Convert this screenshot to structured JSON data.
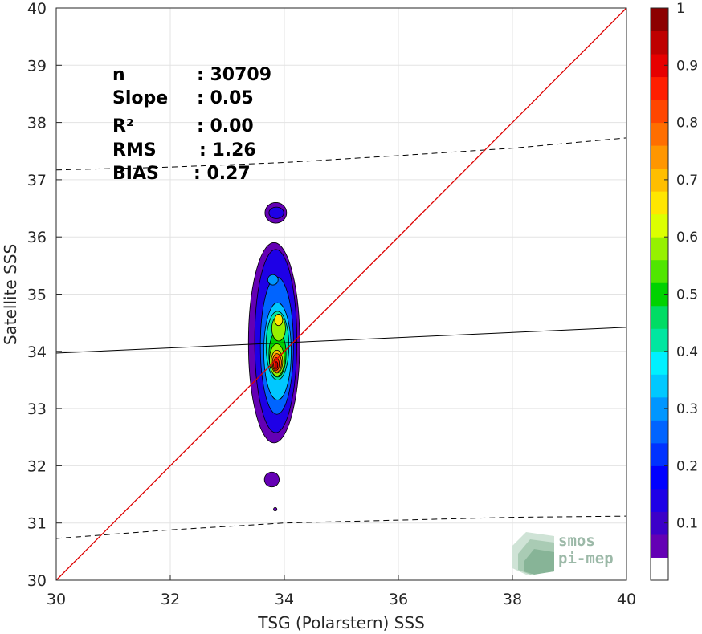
{
  "chart_data": {
    "type": "heatmap",
    "title": "",
    "xlabel": "TSG (Polarstern) SSS",
    "ylabel": "Satellite SSS",
    "xlim": [
      30,
      40
    ],
    "ylim": [
      30,
      40
    ],
    "xticks": [
      "30",
      "32",
      "34",
      "36",
      "38",
      "40"
    ],
    "yticks": [
      "30",
      "31",
      "32",
      "33",
      "34",
      "35",
      "36",
      "37",
      "38",
      "39",
      "40"
    ],
    "grid": true,
    "colorbar": {
      "range": [
        0,
        1
      ],
      "ticks": [
        "0.1",
        "0.2",
        "0.3",
        "0.4",
        "0.5",
        "0.6",
        "0.7",
        "0.8",
        "0.9",
        "1"
      ],
      "colors": [
        "#ffffff",
        "#6400b4",
        "#3c00c8",
        "#1e00e6",
        "#0000ff",
        "#0032ff",
        "#0064ff",
        "#0096ff",
        "#00c8ff",
        "#00f0ff",
        "#00e6a0",
        "#00dc64",
        "#00d200",
        "#50e600",
        "#96f000",
        "#dcff00",
        "#ffe600",
        "#ffbe00",
        "#ff9600",
        "#ff6e00",
        "#ff4600",
        "#ff1e00",
        "#e60000",
        "#be0000",
        "#8c0000"
      ]
    },
    "stats": [
      {
        "label": "n",
        "value": ": 30709"
      },
      {
        "label": "Slope",
        "value": ": 0.05"
      },
      {
        "label": "R²",
        "value": ": 0.00"
      },
      {
        "label": "RMS",
        "value": ": 1.26"
      },
      {
        "label": "BIAS",
        "value": ": 0.27"
      }
    ],
    "identity_line": {
      "color": "#dd0000",
      "x": [
        30,
        40
      ],
      "y": [
        30,
        40
      ]
    },
    "regression_line": {
      "x": [
        30,
        40
      ],
      "y": [
        33.97,
        34.42
      ]
    },
    "bounds_upper": {
      "x": [
        30,
        32,
        34,
        36,
        38,
        40
      ],
      "y": [
        37.17,
        37.22,
        37.3,
        37.42,
        37.55,
        37.73
      ]
    },
    "bounds_lower": {
      "x": [
        30,
        32,
        34,
        36,
        38,
        40
      ],
      "y": [
        30.73,
        30.88,
        31.0,
        31.05,
        31.1,
        31.12
      ]
    },
    "density_contours": [
      {
        "level": 0.05,
        "color": "#6400b4",
        "cx": 33.85,
        "cy": 36.42,
        "rx": 0.19,
        "ry": 0.18
      },
      {
        "level": 0.05,
        "color": "#6400b4",
        "cx": 33.82,
        "cy": 34.15,
        "rx": 0.45,
        "ry": 1.75
      },
      {
        "level": 0.05,
        "color": "#6400b4",
        "cx": 33.78,
        "cy": 31.76,
        "rx": 0.13,
        "ry": 0.13
      },
      {
        "level": 0.05,
        "color": "#6400b4",
        "cx": 33.84,
        "cy": 31.24,
        "rx": 0.03,
        "ry": 0.03
      },
      {
        "level": 0.1,
        "color": "#1e00e6",
        "cx": 33.85,
        "cy": 34.18,
        "rx": 0.37,
        "ry": 1.6
      },
      {
        "level": 0.1,
        "color": "#1e00e6",
        "cx": 33.86,
        "cy": 36.42,
        "rx": 0.13,
        "ry": 0.1
      },
      {
        "level": 0.2,
        "color": "#0064ff",
        "cx": 33.87,
        "cy": 34.1,
        "rx": 0.29,
        "ry": 1.2
      },
      {
        "level": 0.25,
        "color": "#0096ff",
        "cx": 33.8,
        "cy": 35.25,
        "rx": 0.09,
        "ry": 0.09
      },
      {
        "level": 0.3,
        "color": "#00c8ff",
        "cx": 33.88,
        "cy": 34.0,
        "rx": 0.24,
        "ry": 0.85
      },
      {
        "level": 0.4,
        "color": "#00e6a0",
        "cx": 33.88,
        "cy": 34.1,
        "rx": 0.2,
        "ry": 0.6
      },
      {
        "level": 0.5,
        "color": "#00d200",
        "cx": 33.88,
        "cy": 33.95,
        "rx": 0.15,
        "ry": 0.4
      },
      {
        "level": 0.6,
        "color": "#96f000",
        "cx": 33.9,
        "cy": 34.4,
        "rx": 0.12,
        "ry": 0.22
      },
      {
        "level": 0.7,
        "color": "#ffe600",
        "cx": 33.9,
        "cy": 34.55,
        "rx": 0.07,
        "ry": 0.1
      },
      {
        "level": 0.6,
        "color": "#96f000",
        "cx": 33.87,
        "cy": 33.85,
        "rx": 0.13,
        "ry": 0.28
      },
      {
        "level": 0.7,
        "color": "#ffbe00",
        "cx": 33.87,
        "cy": 33.82,
        "rx": 0.1,
        "ry": 0.2
      },
      {
        "level": 0.8,
        "color": "#ff6e00",
        "cx": 33.87,
        "cy": 33.8,
        "rx": 0.08,
        "ry": 0.16
      },
      {
        "level": 0.9,
        "color": "#ff1e00",
        "cx": 33.86,
        "cy": 33.78,
        "rx": 0.05,
        "ry": 0.11
      },
      {
        "level": 1.0,
        "color": "#be0000",
        "cx": 33.86,
        "cy": 33.76,
        "rx": 0.025,
        "ry": 0.06
      }
    ]
  },
  "logo": {
    "line1": "smos",
    "line2": "pi-mep"
  }
}
